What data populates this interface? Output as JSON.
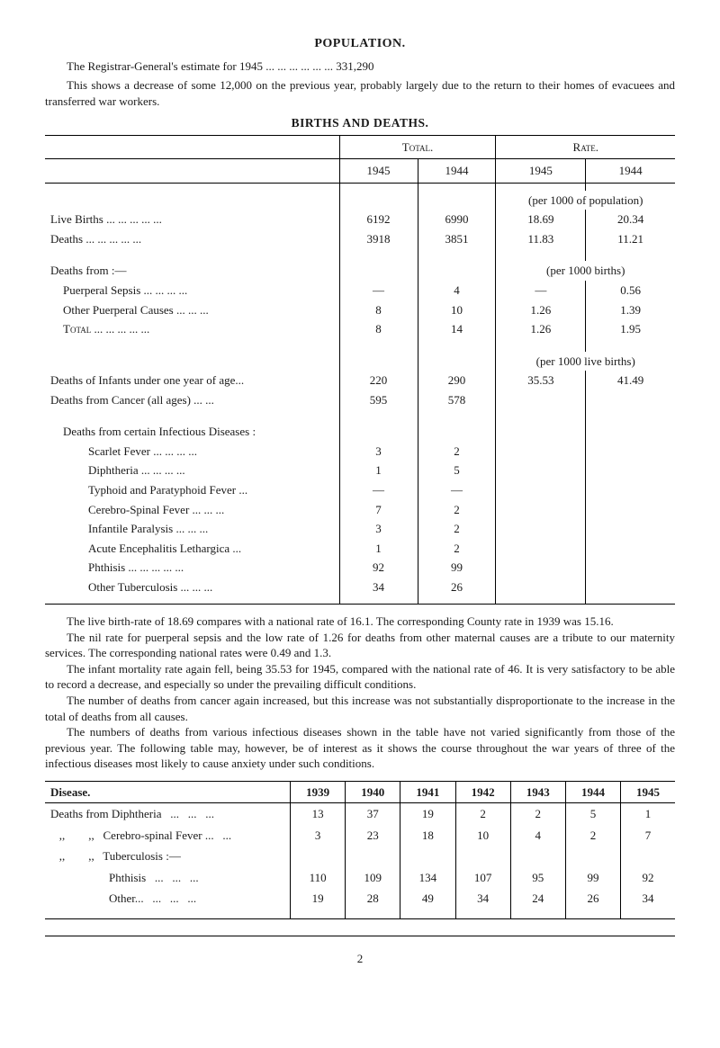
{
  "title": "POPULATION.",
  "intro1": "The Registrar-General's estimate for 1945   ...   ...   ...   ...   ...   ... 331,290",
  "intro2": "This shows a decrease of some 12,000 on the previous year, probably largely due to the return to their homes of evacuees and transferred war workers.",
  "subtitle": "BIRTHS  AND  DEATHS.",
  "t1": {
    "head_total": "Total.",
    "head_rate": "Rate.",
    "year_cols": [
      "1945",
      "1944",
      "1945",
      "1944"
    ],
    "per1000pop": "(per 1000 of population)",
    "rows_main": [
      {
        "label": "Live Births   ...   ...   ...   ...   ...",
        "v": [
          "6192",
          "6990",
          "18.69",
          "20.34"
        ]
      },
      {
        "label": "Deaths        ...   ...   ...   ...   ...",
        "v": [
          "3918",
          "3851",
          "11.83",
          "11.21"
        ]
      }
    ],
    "per1000births": "(per  1000  births)",
    "deaths_from": "Deaths from :—",
    "rows_causes": [
      {
        "label": "Puerperal Sepsis   ...   ...   ...   ...",
        "v": [
          "—",
          "4",
          "—",
          "0.56"
        ]
      },
      {
        "label": "Other Puerperal Causes   ...   ...   ...",
        "v": [
          "8",
          "10",
          "1.26",
          "1.39"
        ]
      },
      {
        "label": "Total   ...   ...   ...   ...   ...",
        "v": [
          "8",
          "14",
          "1.26",
          "1.95"
        ],
        "sc": true
      }
    ],
    "per1000live": "(per 1000 live births)",
    "rows_infant": [
      {
        "label": "Deaths of Infants under one year of age...",
        "v": [
          "220",
          "290",
          "35.53",
          "41.49"
        ]
      },
      {
        "label": "Deaths from Cancer (all ages)   ...   ...",
        "v": [
          "595",
          "578",
          "",
          ""
        ]
      }
    ],
    "inf_header": "Deaths from certain Infectious Diseases :",
    "rows_inf": [
      {
        "label": "Scarlet Fever ...   ...   ...   ...",
        "v": [
          "3",
          "2"
        ]
      },
      {
        "label": "Diphtheria   ...   ...   ...   ...",
        "v": [
          "1",
          "5"
        ]
      },
      {
        "label": "Typhoid and Paratyphoid Fever   ...",
        "v": [
          "—",
          "—"
        ]
      },
      {
        "label": "Cerebro-Spinal Fever ...   ...   ...",
        "v": [
          "7",
          "2"
        ]
      },
      {
        "label": "Infantile Paralysis   ...   ...   ...",
        "v": [
          "3",
          "2"
        ]
      },
      {
        "label": "Acute Encephalitis Lethargica   ...",
        "v": [
          "1",
          "2"
        ]
      },
      {
        "label": "Phthisis ...   ...   ...   ...   ...",
        "v": [
          "92",
          "99"
        ]
      },
      {
        "label": "Other Tuberculosis   ...   ...   ...",
        "v": [
          "34",
          "26"
        ]
      }
    ]
  },
  "paras": [
    "The live birth-rate of 18.69 compares with a national rate of 16.1.  The corresponding County rate in 1939 was 15.16.",
    "The nil rate for puerperal sepsis and the low rate of 1.26 for deaths from other maternal causes are a tribute to our maternity services.  The corresponding national rates were 0.49 and 1.3.",
    "The infant mortality rate again fell, being 35.53 for 1945, compared with the national rate of 46.  It is very satisfactory to be able to record a decrease, and especially so under the prevailing difficult conditions.",
    "The number of deaths from cancer again increased, but this increase was not substantially disproportionate to the increase in the total of deaths from all causes.",
    "The numbers of deaths from various infectious diseases shown in the table have not varied significantly from those of the previous year.  The following table may, however, be of interest as it shows the course throughout the war years of three of the infectious diseases most likely to cause anxiety under such conditions."
  ],
  "t2": {
    "dis_label": "Disease.",
    "years": [
      "1939",
      "1940",
      "1941",
      "1942",
      "1943",
      "1944",
      "1945"
    ],
    "rows": [
      {
        "label": "Deaths from Diphtheria   ...   ...   ...",
        "v": [
          "13",
          "37",
          "19",
          "2",
          "2",
          "5",
          "1"
        ]
      },
      {
        "label": "   ,,        ,,   Cerebro-spinal Fever ...   ...",
        "v": [
          "3",
          "23",
          "18",
          "10",
          "4",
          "2",
          "7"
        ]
      },
      {
        "label": "   ,,        ,,   Tuberculosis :—",
        "v": [
          "",
          "",
          "",
          "",
          "",
          "",
          ""
        ]
      },
      {
        "label": "                    Phthisis   ...   ...   ...",
        "v": [
          "110",
          "109",
          "134",
          "107",
          "95",
          "99",
          "92"
        ]
      },
      {
        "label": "                    Other...   ...   ...   ...",
        "v": [
          "19",
          "28",
          "49",
          "34",
          "24",
          "26",
          "34"
        ]
      }
    ]
  },
  "page": "2"
}
